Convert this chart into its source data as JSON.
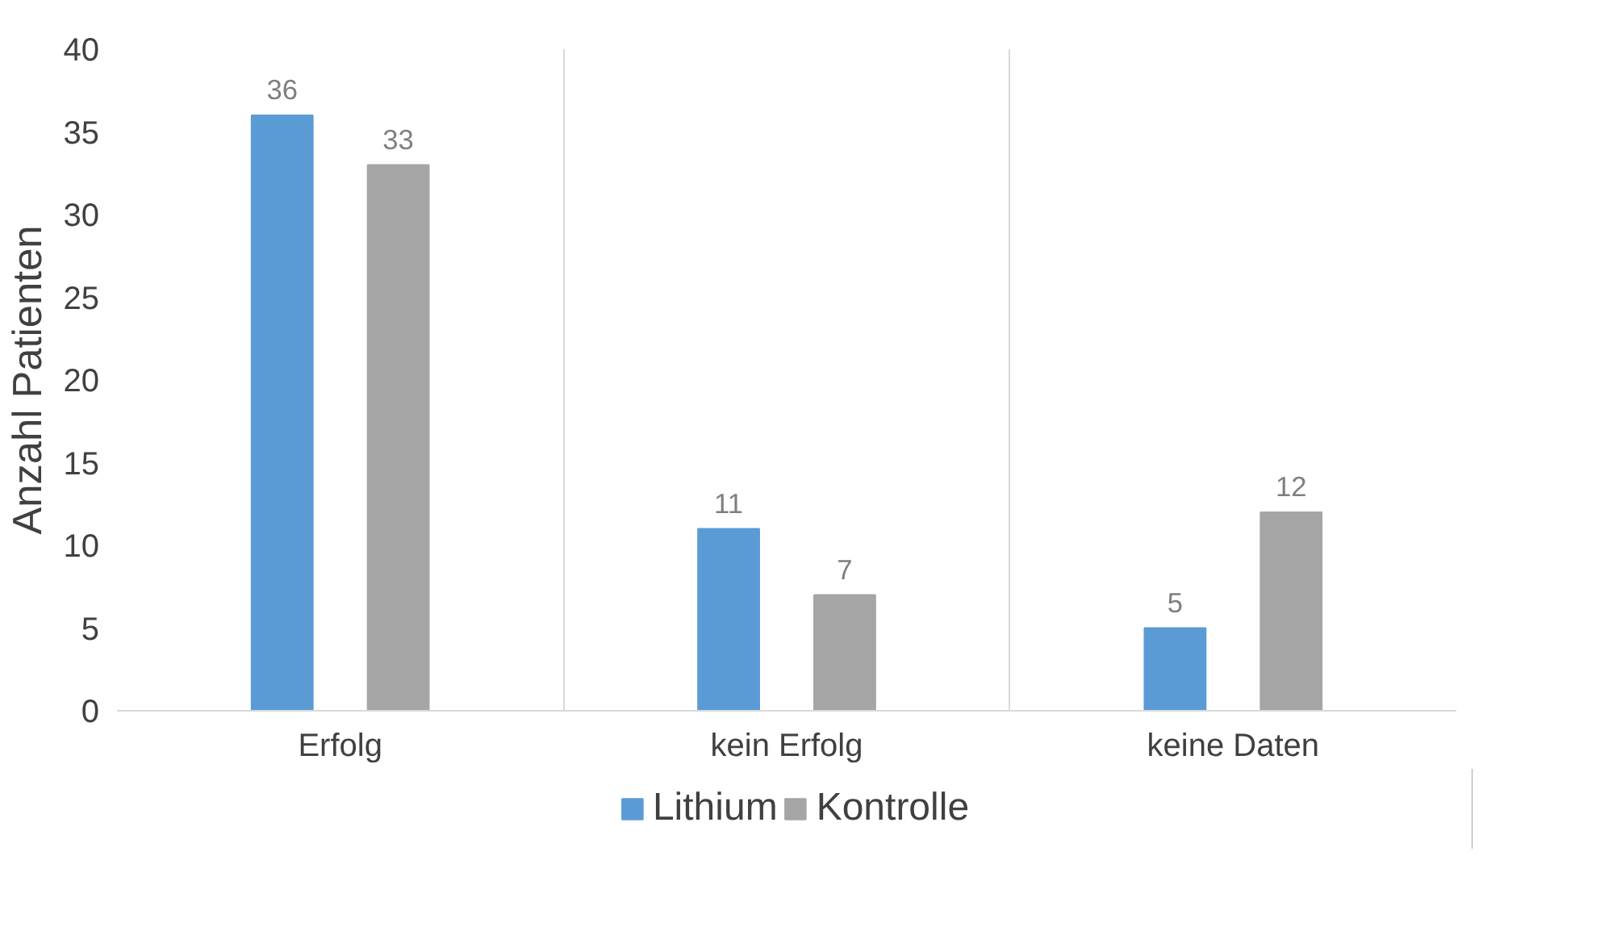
{
  "chart_data": {
    "type": "bar",
    "ylabel": "Anzahl Patienten",
    "categories": [
      "Erfolg",
      "kein Erfolg",
      "keine Daten"
    ],
    "series": [
      {
        "name": "Lithium",
        "color": "#5b9bd5",
        "values": [
          36,
          11,
          5
        ]
      },
      {
        "name": "Kontrolle",
        "color": "#a5a5a5",
        "values": [
          33,
          7,
          12
        ]
      }
    ],
    "ylim": [
      0,
      40
    ],
    "yticks": [
      0,
      5,
      10,
      15,
      20,
      25,
      30,
      35,
      40
    ],
    "grid": "x",
    "legend": "bottom",
    "data_labels": true
  }
}
